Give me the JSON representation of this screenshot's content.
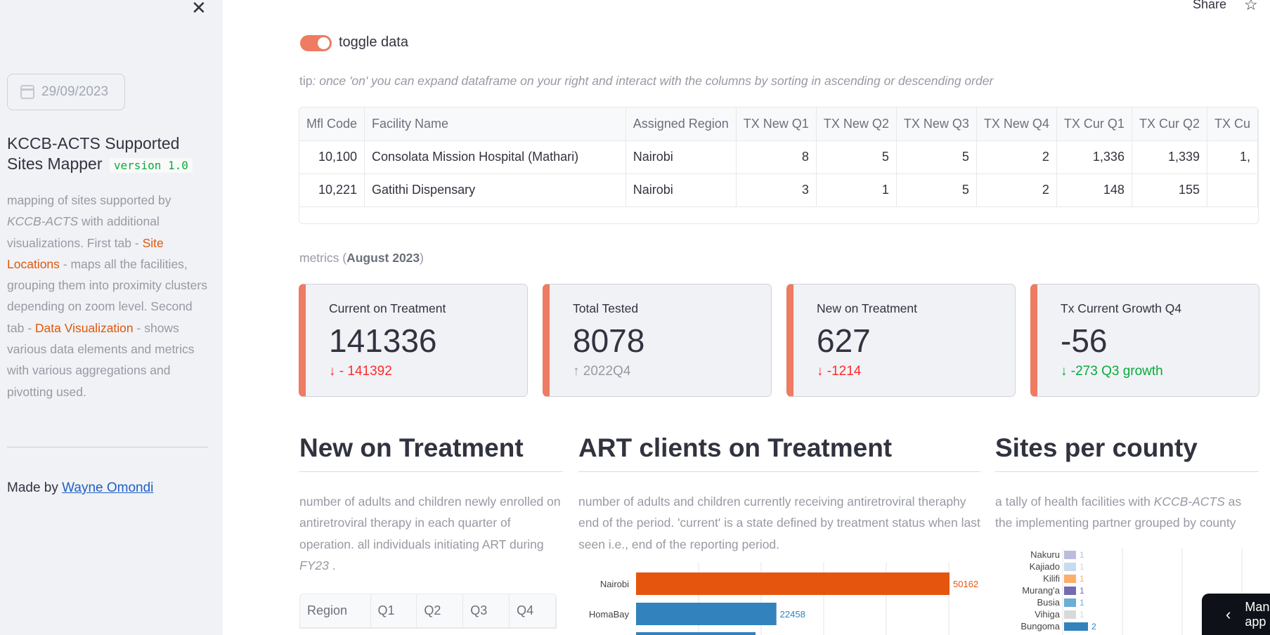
{
  "sidebar": {
    "close_glyph": "✕",
    "date_value": "29/09/2023",
    "title": "KCCB-ACTS Supported Sites Mapper",
    "version": "version 1.0",
    "desc": {
      "p1": "mapping of sites supported by ",
      "p2": "KCCB-ACTS",
      "p3": " with additional visualizations. First tab - ",
      "link1": "Site Locations",
      "p4": " - maps all the facilities, grouping them into proximity clusters depending on zoom level. Second tab - ",
      "link2": "Data Visualization",
      "p5": " - shows various data elements and metrics with various aggregations and pivotting used."
    },
    "made_by_prefix": "Made by ",
    "made_by_name": "Wayne Omondi"
  },
  "header": {
    "share": "Share",
    "star_glyph": "☆"
  },
  "toggle": {
    "label": "toggle data",
    "on": true
  },
  "tip": {
    "prefix": "tip",
    "text": ": once 'on' you can expand dataframe on your right and interact with the columns by sorting in ascending or descending order"
  },
  "dataframe": {
    "columns": [
      "Mfl Code",
      "Facility Name",
      "Assigned Region",
      "TX New Q1",
      "TX New Q2",
      "TX New Q3",
      "TX New Q4",
      "TX Cur Q1",
      "TX Cur Q2",
      "TX Cu"
    ],
    "rows": [
      [
        "10,100",
        "Consolata Mission Hospital (Mathari)",
        "Nairobi",
        "8",
        "5",
        "5",
        "2",
        "1,336",
        "1,339",
        "1,"
      ],
      [
        "10,221",
        "Gatithi Dispensary",
        "Nairobi",
        "3",
        "1",
        "5",
        "2",
        "148",
        "155",
        ""
      ]
    ]
  },
  "metrics_caption": {
    "prefix": "metrics (",
    "period": "August 2023",
    "suffix": ")"
  },
  "metrics": [
    {
      "label": "Current on Treatment",
      "value": "141336",
      "delta": "- 141392",
      "arrow": "↓"
    },
    {
      "label": "Total Tested",
      "value": "8078",
      "delta": "2022Q4",
      "arrow": "↑"
    },
    {
      "label": "New on Treatment",
      "value": "627",
      "delta": "-1214",
      "arrow": "↓"
    },
    {
      "label": "Tx Current Growth Q4",
      "value": "-56",
      "delta": "-273 Q3 growth",
      "arrow": "↓"
    }
  ],
  "colors": {
    "accent": "#ee7b62",
    "negative": "#ff2b2b",
    "positive": "#09ab3b",
    "bar_highlight": "#e6550d",
    "bar_default": "#3182bd"
  },
  "sections": {
    "new_on_treatment": {
      "title": "New on Treatment",
      "desc1": "number of adults and children newly enrolled on antiretroviral therapy in each quarter of operation. all individuals initiating ART during ",
      "desc_italic": "FY23",
      "desc2": " .",
      "table_columns": [
        "Region",
        "Q1",
        "Q2",
        "Q3",
        "Q4"
      ]
    },
    "art_clients": {
      "title": "ART clients on Treatment",
      "desc": "number of adults and children currently receiving antiretroviral theraphy end of the period. 'current' is a state defined by treatment status when last seen i.e., end of the reporting period."
    },
    "sites_per_county": {
      "title": "Sites per county",
      "desc1": "a tally of health facilities with ",
      "desc_italic": "KCCB-ACTS",
      "desc2": " as the implementing partner grouped by county"
    }
  },
  "chart_data": [
    {
      "type": "bar",
      "orientation": "horizontal",
      "categories": [
        "Nairobi",
        "HomaBay"
      ],
      "values": [
        50162,
        22458
      ],
      "title": "",
      "xlabel": "",
      "ylabel": ""
    },
    {
      "type": "bar",
      "orientation": "horizontal",
      "categories": [
        "Nakuru",
        "Kajiado",
        "Kilifi",
        "Murang'a",
        "Busia",
        "Vihiga",
        "Bungoma"
      ],
      "values": [
        1,
        1,
        1,
        1,
        1,
        1,
        2
      ],
      "bar_colors": [
        "#bcbddc",
        "#c6dbef",
        "#fdae6b",
        "#756bb1",
        "#6baed6",
        "#d9d9d9",
        "#3182bd"
      ],
      "title": "",
      "xlabel": "",
      "ylabel": ""
    }
  ],
  "manage_button": {
    "chevron": "‹",
    "label": "Manage app"
  }
}
